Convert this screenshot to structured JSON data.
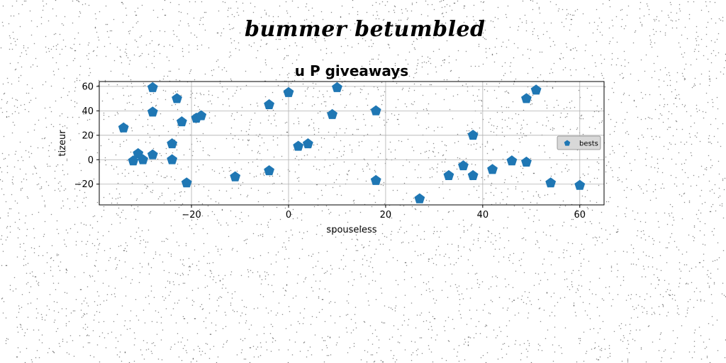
{
  "figure": {
    "suptitle": "bummer betumbled"
  },
  "chart_data": {
    "type": "scatter",
    "title": "u P giveaways",
    "xlabel": "spouseless",
    "ylabel": "tizeur",
    "xlim": [
      -39,
      65
    ],
    "ylim": [
      -37,
      64
    ],
    "xticks": [
      -20,
      0,
      20,
      40,
      60
    ],
    "yticks": [
      -20,
      0,
      20,
      40,
      60
    ],
    "xtick_labels": [
      "−20",
      "0",
      "20",
      "40",
      "60"
    ],
    "ytick_labels": [
      "−20",
      "0",
      "20",
      "40",
      "60"
    ],
    "grid": true,
    "legend_position": "right",
    "marker": "pentagon",
    "colors": {
      "series": "#1f77b4",
      "grid": "#b0b0b0",
      "legend_bg": "#d8d8d8"
    },
    "series": [
      {
        "name": "bests",
        "x": [
          -34,
          -32,
          -31,
          -30,
          -28,
          -28,
          -28,
          -24,
          -24,
          -23,
          -22,
          -21,
          -19,
          -18,
          -11,
          -4,
          -4,
          0,
          2,
          4,
          9,
          10,
          18,
          18,
          27,
          33,
          36,
          38,
          38,
          42,
          46,
          49,
          49,
          51,
          54,
          60
        ],
        "y": [
          26,
          -1,
          5,
          0,
          59,
          39,
          4,
          13,
          0,
          50,
          31,
          -19,
          34,
          36,
          -14,
          45,
          -9,
          55,
          11,
          13,
          37,
          59,
          40,
          -17,
          -32,
          -13,
          -5,
          -13,
          20,
          -8,
          -1,
          50,
          -2,
          57,
          -19,
          -21
        ]
      }
    ]
  }
}
